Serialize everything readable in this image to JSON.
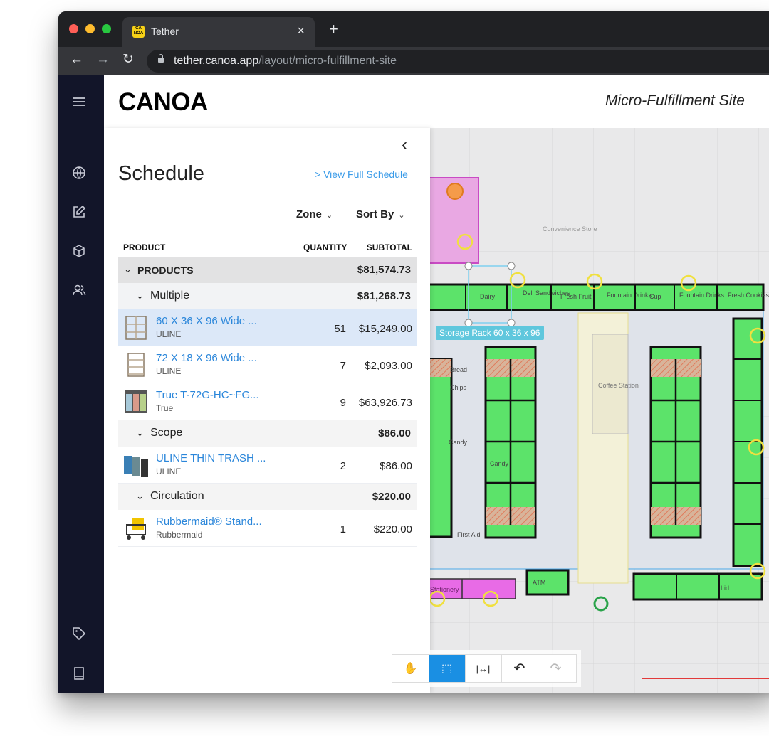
{
  "browser": {
    "tab_title": "Tether",
    "favicon_text": "CA NOA",
    "tab_close": "×",
    "new_tab": "+",
    "url_host": "tether.canoa.app",
    "url_path": "/layout/micro-fulfillment-site"
  },
  "app": {
    "logo": "CANOA",
    "site_title": "Micro-Fulfillment Site"
  },
  "nav_icons": [
    "menu-icon",
    "globe-icon",
    "edit-icon",
    "box-icon",
    "users-icon",
    "tag-icon",
    "book-icon"
  ],
  "schedule": {
    "title": "Schedule",
    "full_link": "> View Full Schedule",
    "filter_zone": "Zone",
    "filter_sort": "Sort By",
    "col_product": "PRODUCT",
    "col_quantity": "QUANTITY",
    "col_subtotal": "SUBTOTAL",
    "top_group": {
      "label": "PRODUCTS",
      "subtotal": "$81,574.73"
    },
    "groups": [
      {
        "label": "Multiple",
        "subtotal": "$81,268.73",
        "items": [
          {
            "name": "60 X 36 X 96 Wide ...",
            "brand": "ULINE",
            "qty": "51",
            "subtotal": "$15,249.00",
            "selected": true,
            "thumb": "shelf"
          },
          {
            "name": "72 X 18 X 96 Wide ...",
            "brand": "ULINE",
            "qty": "7",
            "subtotal": "$2,093.00",
            "selected": false,
            "thumb": "shelf"
          },
          {
            "name": "True T-72G-HC~FG...",
            "brand": "True",
            "qty": "9",
            "subtotal": "$63,926.73",
            "selected": false,
            "thumb": "fridge"
          }
        ]
      },
      {
        "label": "Scope",
        "subtotal": "$86.00",
        "items": [
          {
            "name": "ULINE THIN TRASH ...",
            "brand": "ULINE",
            "qty": "2",
            "subtotal": "$86.00",
            "selected": false,
            "thumb": "trash"
          }
        ]
      },
      {
        "label": "Circulation",
        "subtotal": "$220.00",
        "items": [
          {
            "name": "Rubbermaid® Stand...",
            "brand": "Rubbermaid",
            "qty": "1",
            "subtotal": "$220.00",
            "selected": false,
            "thumb": "cart"
          }
        ]
      }
    ]
  },
  "floorplan": {
    "selection_label": "Storage Rack 60 x 36 x 96",
    "labels": [
      "Convenience Store",
      "Dairy",
      "Deli Sandwiches",
      "Fresh Fruit",
      "Fountain Drinks",
      "Cup",
      "Fountain Drinks",
      "Fresh Cookies",
      "Bread",
      "Chips",
      "Coffee Station",
      "Candy",
      "Candy",
      "First Aid",
      "Stationery",
      "ATM",
      "Lid"
    ]
  },
  "toolbar_tools": [
    {
      "name": "pan-tool-icon",
      "glyph": "✋",
      "state": "normal"
    },
    {
      "name": "select-tool-icon",
      "glyph": "⬚",
      "state": "active"
    },
    {
      "name": "measure-tool-icon",
      "glyph": "|↔|",
      "state": "normal"
    },
    {
      "name": "undo-icon",
      "glyph": "↶",
      "state": "normal"
    },
    {
      "name": "redo-icon",
      "glyph": "↷",
      "state": "disabled"
    }
  ],
  "colors": {
    "accent": "#1a8fe3",
    "link": "#2a86da",
    "nav_bg": "#121529",
    "rack_green": "#5ce36a",
    "zone_magenta": "#e86be6"
  }
}
